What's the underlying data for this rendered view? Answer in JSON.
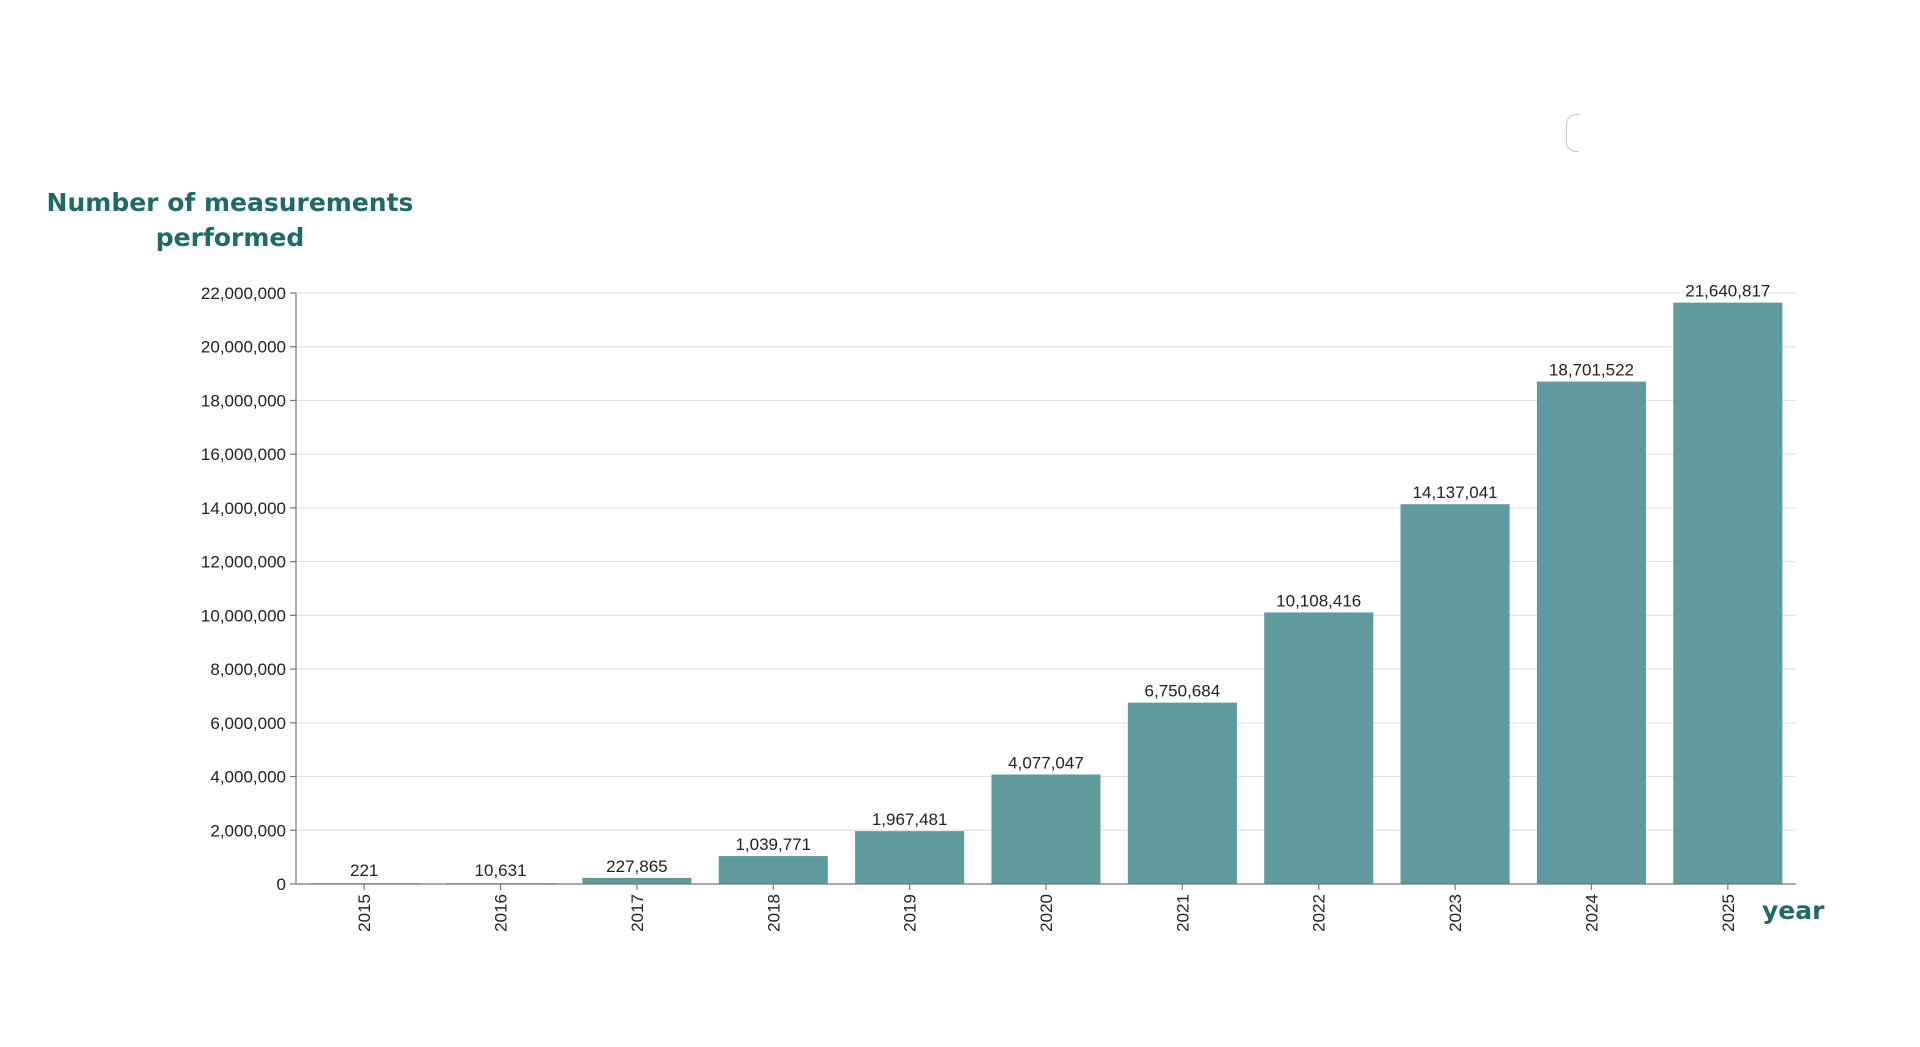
{
  "chart_data": {
    "type": "bar",
    "ylabel": "Number of measurements performed",
    "xlabel": "year",
    "categories": [
      "2015",
      "2016",
      "2017",
      "2018",
      "2019",
      "2020",
      "2021",
      "2022",
      "2023",
      "2024",
      "2025"
    ],
    "values": [
      221,
      10631,
      227865,
      1039771,
      1967481,
      4077047,
      6750684,
      10108416,
      14137041,
      18701522,
      21640817
    ],
    "value_labels": [
      "221",
      "10,631",
      "227,865",
      "1,039,771",
      "1,967,481",
      "4,077,047",
      "6,750,684",
      "10,108,416",
      "14,137,041",
      "18,701,522",
      "21,640,817"
    ],
    "yticks": [
      0,
      2000000,
      4000000,
      6000000,
      8000000,
      10000000,
      12000000,
      14000000,
      16000000,
      18000000,
      20000000,
      22000000
    ],
    "ytick_labels": [
      "0",
      "2,000,000",
      "4,000,000",
      "6,000,000",
      "8,000,000",
      "10,000,000",
      "12,000,000",
      "14,000,000",
      "16,000,000",
      "18,000,000",
      "20,000,000",
      "22,000,000"
    ],
    "ylim": [
      0,
      22000000
    ],
    "grid": true,
    "colors": {
      "bar": "#5f9b9c",
      "label_accent": "#1d6b68",
      "grid": "#e3e3e3",
      "axis": "#777777"
    }
  }
}
